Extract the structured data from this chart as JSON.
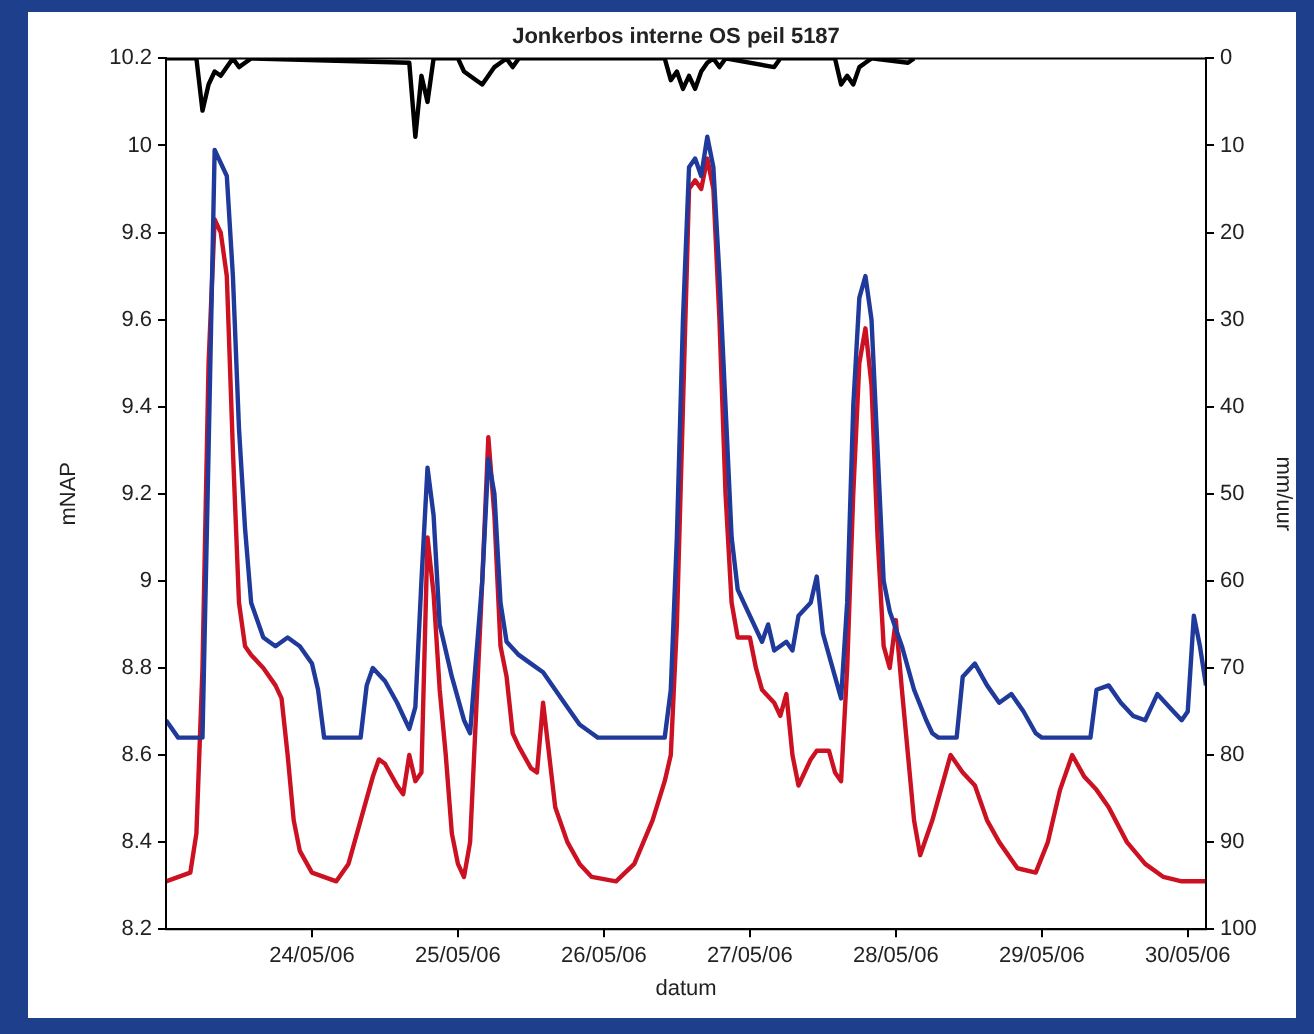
{
  "chart_data": {
    "type": "line",
    "title": "Jonkerbos interne OS peil 5187",
    "xlabel": "datum",
    "ylabel": "mNAP",
    "y2label": "mm/uur",
    "xlim": [
      "--05-23T00:00",
      "--05-30T03:00"
    ],
    "xticks": [
      {
        "value": "--05-24",
        "label": "24/05/06"
      },
      {
        "value": "--05-25",
        "label": "25/05/06"
      },
      {
        "value": "--05-26",
        "label": "26/05/06"
      },
      {
        "value": "--05-27",
        "label": "27/05/06"
      },
      {
        "value": "--05-28",
        "label": "28/05/06"
      },
      {
        "value": "--05-29",
        "label": "29/05/06"
      },
      {
        "value": "--05-30",
        "label": "30/05/06"
      }
    ],
    "ylim": [
      8.2,
      10.2
    ],
    "yticks": [
      8.2,
      8.4,
      8.6,
      8.8,
      9,
      9.2,
      9.4,
      9.6,
      9.8,
      10,
      10.2
    ],
    "y2lim": [
      100,
      0
    ],
    "y2ticks": [
      0,
      10,
      20,
      30,
      40,
      50,
      60,
      70,
      80,
      90,
      100
    ],
    "grid": false,
    "legend": false,
    "line_style": "solid",
    "series": [
      {
        "color": "#1f3a9a",
        "x": [
          "--05-23T00:00",
          "--05-23T02:00",
          "--05-23T06:00",
          "--05-23T07:00",
          "--05-23T08:00",
          "--05-23T10:00",
          "--05-23T11:00",
          "--05-23T12:00",
          "--05-23T13:00",
          "--05-23T14:00",
          "--05-23T16:00",
          "--05-23T18:00",
          "--05-23T20:00",
          "--05-23T22:00",
          "--05-24T00:00",
          "--05-24T01:00",
          "--05-24T02:00",
          "--05-24T08:00",
          "--05-24T09:00",
          "--05-24T10:00",
          "--05-24T12:00",
          "--05-24T14:00",
          "--05-24T16:00",
          "--05-24T17:00",
          "--05-24T18:00",
          "--05-24T19:00",
          "--05-24T20:00",
          "--05-24T21:00",
          "--05-24T23:00",
          "--05-25T01:00",
          "--05-25T02:00",
          "--05-25T04:00",
          "--05-25T05:00",
          "--05-25T06:00",
          "--05-25T07:00",
          "--05-25T08:00",
          "--05-25T10:00",
          "--05-25T12:00",
          "--05-25T14:00",
          "--05-25T16:00",
          "--05-25T18:00",
          "--05-25T20:00",
          "--05-25T22:00",
          "--05-25T23:00",
          "--05-26T10:00",
          "--05-26T11:00",
          "--05-26T12:00",
          "--05-26T13:00",
          "--05-26T14:00",
          "--05-26T15:00",
          "--05-26T16:00",
          "--05-26T17:00",
          "--05-26T18:00",
          "--05-26T19:00",
          "--05-26T20:00",
          "--05-26T21:00",
          "--05-26T22:00",
          "--05-27T00:00",
          "--05-27T02:00",
          "--05-27T03:00",
          "--05-27T04:00",
          "--05-27T06:00",
          "--05-27T07:00",
          "--05-27T08:00",
          "--05-27T10:00",
          "--05-27T11:00",
          "--05-27T12:00",
          "--05-27T14:00",
          "--05-27T15:00",
          "--05-27T16:00",
          "--05-27T17:00",
          "--05-27T18:00",
          "--05-27T19:00",
          "--05-27T20:00",
          "--05-27T21:00",
          "--05-27T22:00",
          "--05-27T23:00",
          "--05-28T01:00",
          "--05-28T03:00",
          "--05-28T05:00",
          "--05-28T06:00",
          "--05-28T07:00",
          "--05-28T10:00",
          "--05-28T11:00",
          "--05-28T13:00",
          "--05-28T15:00",
          "--05-28T17:00",
          "--05-28T19:00",
          "--05-28T21:00",
          "--05-28T23:00",
          "--05-29T00:00",
          "--05-29T08:00",
          "--05-29T09:00",
          "--05-29T11:00",
          "--05-29T13:00",
          "--05-29T15:00",
          "--05-29T17:00",
          "--05-29T19:00",
          "--05-29T21:00",
          "--05-29T23:00",
          "--05-30T00:00",
          "--05-30T01:00",
          "--05-30T02:00",
          "--05-30T03:00"
        ],
        "values": [
          8.68,
          8.64,
          8.64,
          9.3,
          9.99,
          9.93,
          9.7,
          9.35,
          9.12,
          8.95,
          8.87,
          8.85,
          8.87,
          8.85,
          8.81,
          8.75,
          8.64,
          8.64,
          8.76,
          8.8,
          8.77,
          8.72,
          8.66,
          8.71,
          9.0,
          9.26,
          9.15,
          8.9,
          8.78,
          8.68,
          8.65,
          9.0,
          9.28,
          9.2,
          8.95,
          8.86,
          8.83,
          8.81,
          8.79,
          8.75,
          8.71,
          8.67,
          8.65,
          8.64,
          8.64,
          8.75,
          9.1,
          9.6,
          9.95,
          9.97,
          9.93,
          10.02,
          9.95,
          9.7,
          9.4,
          9.1,
          8.98,
          8.92,
          8.86,
          8.9,
          8.84,
          8.86,
          8.84,
          8.92,
          8.95,
          9.01,
          8.88,
          8.78,
          8.73,
          8.95,
          9.4,
          9.65,
          9.7,
          9.6,
          9.3,
          9.0,
          8.93,
          8.85,
          8.75,
          8.68,
          8.65,
          8.64,
          8.64,
          8.78,
          8.81,
          8.76,
          8.72,
          8.74,
          8.7,
          8.65,
          8.64,
          8.64,
          8.75,
          8.76,
          8.72,
          8.69,
          8.68,
          8.74,
          8.71,
          8.68,
          8.7,
          8.92,
          8.85,
          8.76
        ]
      },
      {
        "color": "#cc1122",
        "x": [
          "--05-23T00:00",
          "--05-23T04:00",
          "--05-23T05:00",
          "--05-23T06:00",
          "--05-23T07:00",
          "--05-23T08:00",
          "--05-23T09:00",
          "--05-23T10:00",
          "--05-23T11:00",
          "--05-23T12:00",
          "--05-23T13:00",
          "--05-23T14:00",
          "--05-23T16:00",
          "--05-23T18:00",
          "--05-23T19:00",
          "--05-23T20:00",
          "--05-23T21:00",
          "--05-23T22:00",
          "--05-24T00:00",
          "--05-24T04:00",
          "--05-24T06:00",
          "--05-24T08:00",
          "--05-24T10:00",
          "--05-24T11:00",
          "--05-24T12:00",
          "--05-24T14:00",
          "--05-24T15:00",
          "--05-24T16:00",
          "--05-24T17:00",
          "--05-24T18:00",
          "--05-24T19:00",
          "--05-24T20:00",
          "--05-24T21:00",
          "--05-24T22:00",
          "--05-24T23:00",
          "--05-25T00:00",
          "--05-25T01:00",
          "--05-25T02:00",
          "--05-25T03:00",
          "--05-25T04:00",
          "--05-25T05:00",
          "--05-25T06:00",
          "--05-25T07:00",
          "--05-25T08:00",
          "--05-25T09:00",
          "--05-25T10:00",
          "--05-25T12:00",
          "--05-25T13:00",
          "--05-25T14:00",
          "--05-25T15:00",
          "--05-25T16:00",
          "--05-25T18:00",
          "--05-25T20:00",
          "--05-25T22:00",
          "--05-26T02:00",
          "--05-26T05:00",
          "--05-26T08:00",
          "--05-26T10:00",
          "--05-26T11:00",
          "--05-26T12:00",
          "--05-26T13:00",
          "--05-26T14:00",
          "--05-26T15:00",
          "--05-26T16:00",
          "--05-26T17:00",
          "--05-26T18:00",
          "--05-26T19:00",
          "--05-26T20:00",
          "--05-26T21:00",
          "--05-26T22:00",
          "--05-27T00:00",
          "--05-27T01:00",
          "--05-27T02:00",
          "--05-27T04:00",
          "--05-27T05:00",
          "--05-27T06:00",
          "--05-27T07:00",
          "--05-27T08:00",
          "--05-27T10:00",
          "--05-27T11:00",
          "--05-27T13:00",
          "--05-27T14:00",
          "--05-27T15:00",
          "--05-27T16:00",
          "--05-27T17:00",
          "--05-27T18:00",
          "--05-27T19:00",
          "--05-27T20:00",
          "--05-27T21:00",
          "--05-27T22:00",
          "--05-27T23:00",
          "--05-28T00:00",
          "--05-28T01:00",
          "--05-28T02:00",
          "--05-28T03:00",
          "--05-28T04:00",
          "--05-28T06:00",
          "--05-28T08:00",
          "--05-28T09:00",
          "--05-28T11:00",
          "--05-28T13:00",
          "--05-28T15:00",
          "--05-28T17:00",
          "--05-28T20:00",
          "--05-28T23:00",
          "--05-29T01:00",
          "--05-29T03:00",
          "--05-29T05:00",
          "--05-29T07:00",
          "--05-29T09:00",
          "--05-29T11:00",
          "--05-29T14:00",
          "--05-29T17:00",
          "--05-29T20:00",
          "--05-29T23:00",
          "--05-30T03:00"
        ],
        "values": [
          8.31,
          8.33,
          8.42,
          8.8,
          9.5,
          9.83,
          9.8,
          9.7,
          9.3,
          8.95,
          8.85,
          8.83,
          8.8,
          8.76,
          8.73,
          8.6,
          8.45,
          8.38,
          8.33,
          8.31,
          8.35,
          8.45,
          8.55,
          8.59,
          8.58,
          8.53,
          8.51,
          8.6,
          8.54,
          8.56,
          9.1,
          8.97,
          8.75,
          8.6,
          8.42,
          8.35,
          8.32,
          8.4,
          8.7,
          9.0,
          9.33,
          9.15,
          8.85,
          8.78,
          8.65,
          8.62,
          8.57,
          8.56,
          8.72,
          8.6,
          8.48,
          8.4,
          8.35,
          8.32,
          8.31,
          8.35,
          8.45,
          8.54,
          8.6,
          8.9,
          9.4,
          9.9,
          9.92,
          9.9,
          9.97,
          9.9,
          9.6,
          9.2,
          8.95,
          8.87,
          8.87,
          8.8,
          8.75,
          8.72,
          8.69,
          8.74,
          8.6,
          8.53,
          8.59,
          8.61,
          8.61,
          8.56,
          8.54,
          8.8,
          9.2,
          9.5,
          9.58,
          9.45,
          9.1,
          8.85,
          8.8,
          8.91,
          8.75,
          8.6,
          8.45,
          8.37,
          8.45,
          8.55,
          8.6,
          8.56,
          8.53,
          8.45,
          8.4,
          8.34,
          8.33,
          8.4,
          8.52,
          8.6,
          8.55,
          8.52,
          8.48,
          8.4,
          8.35,
          8.32,
          8.31,
          8.31
        ]
      },
      {
        "color": "#000000",
        "axis": "y2",
        "x": [
          "--05-23T00:00",
          "--05-23T05:00",
          "--05-23T06:00",
          "--05-23T07:00",
          "--05-23T08:00",
          "--05-23T09:00",
          "--05-23T10:00",
          "--05-23T11:00",
          "--05-23T12:00",
          "--05-23T13:00",
          "--05-23T14:00",
          "--05-24T16:00",
          "--05-24T17:00",
          "--05-24T18:00",
          "--05-24T19:00",
          "--05-24T20:00",
          "--05-25T00:00",
          "--05-25T01:00",
          "--05-25T03:00",
          "--05-25T04:00",
          "--05-25T05:00",
          "--05-25T06:00",
          "--05-25T07:00",
          "--05-25T08:00",
          "--05-25T09:00",
          "--05-25T10:00",
          "--05-26T10:00",
          "--05-26T11:00",
          "--05-26T12:00",
          "--05-26T13:00",
          "--05-26T14:00",
          "--05-26T15:00",
          "--05-26T16:00",
          "--05-26T17:00",
          "--05-26T18:00",
          "--05-26T19:00",
          "--05-26T20:00",
          "--05-27T04:00",
          "--05-27T05:00",
          "--05-27T14:00",
          "--05-27T15:00",
          "--05-27T16:00",
          "--05-27T17:00",
          "--05-27T18:00",
          "--05-27T19:00",
          "--05-27T20:00",
          "--05-28T02:00",
          "--05-28T03:00"
        ],
        "values": [
          0,
          0,
          6,
          3,
          1.5,
          2,
          1,
          0,
          1,
          0.5,
          0,
          0.5,
          9,
          2,
          5,
          0,
          0,
          1.5,
          2.5,
          3,
          2,
          1,
          0.5,
          0,
          1,
          0,
          0,
          2.5,
          1.5,
          3.5,
          2,
          3.5,
          1.5,
          0.5,
          0,
          1,
          0,
          1,
          0,
          0,
          3,
          2,
          3,
          1,
          0.5,
          0,
          0.5,
          0
        ]
      }
    ]
  }
}
